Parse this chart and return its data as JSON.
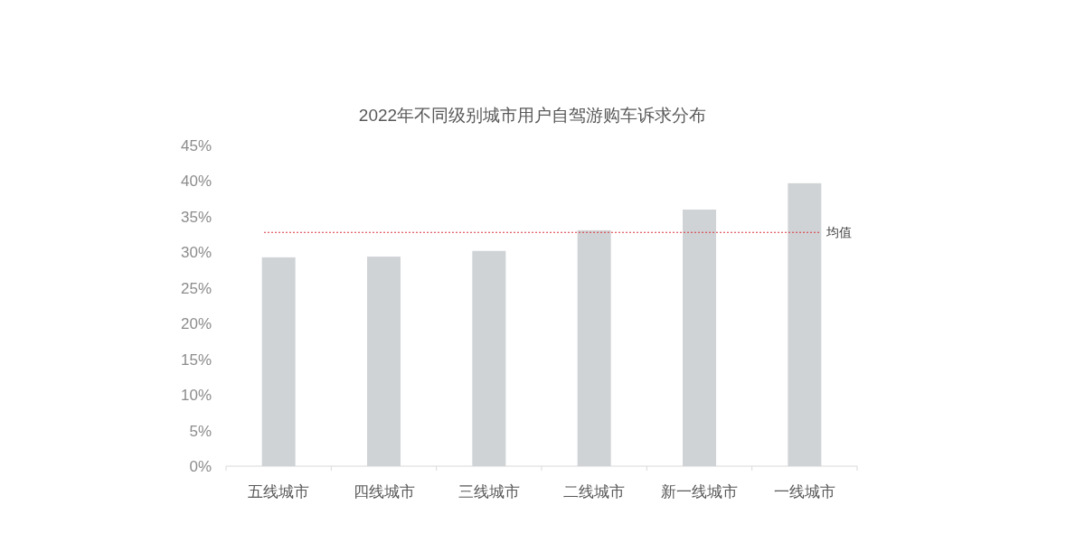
{
  "chart_data": {
    "type": "bar",
    "title": "2022年不同级别城市用户自驾游购车诉求分布",
    "categories": [
      "五线城市",
      "四线城市",
      "三线城市",
      "二线城市",
      "新一线城市",
      "一线城市"
    ],
    "values": [
      29.3,
      29.4,
      30.2,
      33.1,
      36.0,
      39.7
    ],
    "color": "#d0d3d6",
    "ylim": [
      0,
      45
    ],
    "yticks": [
      {
        "value": 0,
        "label": "0%"
      },
      {
        "value": 5,
        "label": "5%"
      },
      {
        "value": 10,
        "label": "10%"
      },
      {
        "value": 15,
        "label": "15%"
      },
      {
        "value": 20,
        "label": "20%"
      },
      {
        "value": 25,
        "label": "25%"
      },
      {
        "value": 30,
        "label": "30%"
      },
      {
        "value": 35,
        "label": "35%"
      },
      {
        "value": 40,
        "label": "40%"
      },
      {
        "value": 45,
        "label": "45%"
      }
    ],
    "ref_lines": [
      {
        "axis": "y",
        "value": 32.8,
        "label": "均值",
        "color": "#d9343c",
        "line_style": "dotted"
      }
    ]
  }
}
